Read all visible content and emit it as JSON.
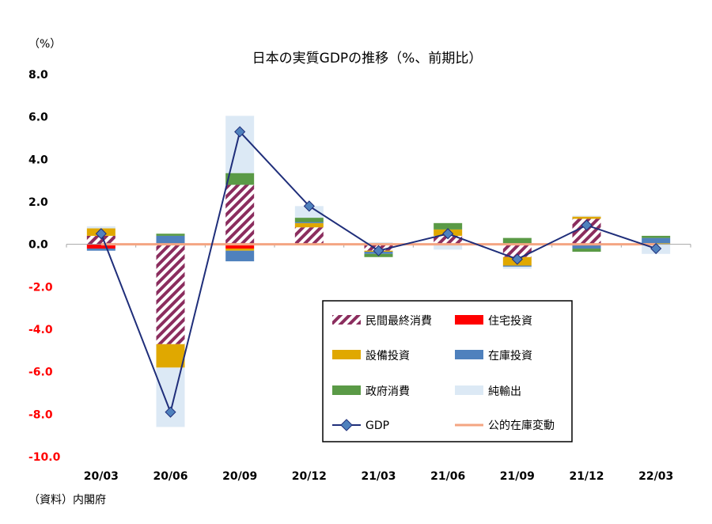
{
  "chart_data": {
    "type": "bar",
    "title": "日本の実質GDPの推移（%、前期比）",
    "unit": "（%）",
    "source": "（資料）内閣府",
    "categories": [
      "20/03",
      "20/06",
      "20/09",
      "20/12",
      "21/03",
      "21/06",
      "21/09",
      "21/12",
      "22/03"
    ],
    "ylim": [
      -10.0,
      8.0
    ],
    "yticks": [
      "8.0",
      "6.0",
      "4.0",
      "2.0",
      "0.0",
      "-2.0",
      "-4.0",
      "-6.0",
      "-8.0",
      "-10.0"
    ],
    "ytick_values": [
      8,
      6,
      4,
      2,
      0,
      -2,
      -4,
      -6,
      -8,
      -10
    ],
    "colors": {
      "consumption": "#8b2d5e",
      "housing": "#ff0000",
      "capex": "#e0a800",
      "inventory": "#4f81bd",
      "government": "#5a9a46",
      "net_exports": "#dce9f5",
      "gdp": "#1f2e7a",
      "public_inventory": "#f4a582",
      "negative_tick": "#ff0000"
    },
    "series": [
      {
        "key": "consumption",
        "name": "民間最終消費",
        "values": [
          0.4,
          -4.7,
          2.8,
          0.8,
          -0.3,
          0.4,
          -0.6,
          1.2,
          0.0
        ]
      },
      {
        "key": "housing",
        "name": "住宅投資",
        "values": [
          -0.2,
          0.0,
          -0.2,
          0.0,
          0.0,
          0.0,
          0.0,
          0.0,
          0.0
        ]
      },
      {
        "key": "capex",
        "name": "設備投資",
        "values": [
          0.35,
          -1.1,
          -0.1,
          0.2,
          -0.05,
          0.3,
          -0.4,
          0.1,
          0.05
        ]
      },
      {
        "key": "inventory",
        "name": "在庫投資",
        "values": [
          -0.1,
          0.4,
          -0.5,
          0.05,
          -0.1,
          0.0,
          -0.05,
          -0.2,
          0.25
        ]
      },
      {
        "key": "government",
        "name": "政府消費",
        "values": [
          0.0,
          0.1,
          0.55,
          0.2,
          -0.15,
          0.3,
          0.3,
          -0.15,
          0.1
        ]
      },
      {
        "key": "net_exports",
        "name": "純輸出",
        "values": [
          0.1,
          -2.8,
          2.7,
          0.55,
          0.1,
          -0.25,
          -0.1,
          0.05,
          -0.45
        ]
      },
      {
        "key": "gdp",
        "name": "GDP",
        "type": "line",
        "values": [
          0.5,
          -7.9,
          5.3,
          1.8,
          -0.3,
          0.5,
          -0.7,
          0.9,
          -0.2
        ]
      },
      {
        "key": "public_inventory",
        "name": "公的在庫変動",
        "type": "line",
        "values": [
          0.0,
          0.0,
          0.0,
          0.0,
          0.0,
          0.0,
          0.0,
          0.0,
          0.0
        ]
      }
    ],
    "legend": {
      "position": "bottom-right inside",
      "entries": [
        "民間最終消費",
        "住宅投資",
        "設備投資",
        "在庫投資",
        "政府消費",
        "純輸出",
        "GDP",
        "公的在庫変動"
      ]
    },
    "grid": false
  }
}
